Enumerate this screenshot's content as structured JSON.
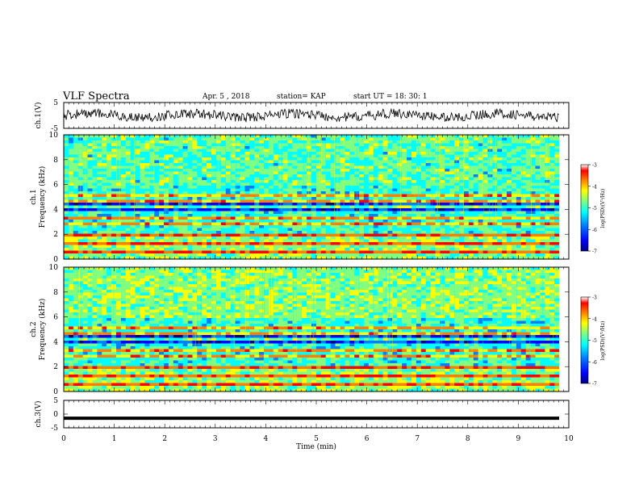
{
  "header": {
    "title": "VLF Spectra",
    "date": "Apr. 5 , 2018",
    "station": "station= KAP",
    "start_time": "start UT = 18: 30: 1"
  },
  "colors": {
    "spectrogram_scale": [
      "#00007f",
      "#0000ff",
      "#0080ff",
      "#00ffff",
      "#80ff80",
      "#ffff00",
      "#ff8000",
      "#ff0000",
      "#ffffff"
    ],
    "waveform": "#000000"
  },
  "chart_data": [
    {
      "type": "line",
      "panel": "ch1-waveform",
      "ylabel": "ch.1(V)",
      "ylim": [
        -5,
        5
      ],
      "yticks": [
        "5",
        "-5"
      ],
      "x_range": [
        0,
        9.8
      ],
      "description_values": {
        "mean_level": 0,
        "amplitude_approx": 1.2
      }
    },
    {
      "type": "heatmap",
      "panel": "ch1-spectrogram",
      "ylabel": "ch.1\nFrequency (kHz)",
      "ylim": [
        0,
        10
      ],
      "yticks": [
        "0",
        "2",
        "4",
        "6",
        "8",
        "10"
      ],
      "colorbar": {
        "label": "log(PSD)(V²/Hz)",
        "ticks": [
          "-3",
          "-4",
          "-5",
          "-6",
          "-7"
        ],
        "range": [
          -7,
          -3
        ]
      }
    },
    {
      "type": "heatmap",
      "panel": "ch2-spectrogram",
      "ylabel": "ch.2\nFrequency (kHz)",
      "ylim": [
        0,
        10
      ],
      "yticks": [
        "0",
        "2",
        "4",
        "6",
        "8",
        "10"
      ],
      "colorbar": {
        "label": "log(PSD)(V²/Hz)",
        "ticks": [
          "-3",
          "-4",
          "-5",
          "-6",
          "-7"
        ],
        "range": [
          -7,
          -3
        ]
      }
    },
    {
      "type": "line",
      "panel": "ch3-waveform",
      "ylabel": "ch.3(V)",
      "ylim": [
        -5,
        5
      ],
      "yticks": [
        "5",
        "0",
        "-5"
      ],
      "values_constant": -1.5
    }
  ],
  "x_axis": {
    "label": "Time (min)",
    "ticks": [
      "0",
      "1",
      "2",
      "3",
      "4",
      "5",
      "6",
      "7",
      "8",
      "9",
      "10"
    ],
    "range": [
      0,
      10
    ]
  }
}
